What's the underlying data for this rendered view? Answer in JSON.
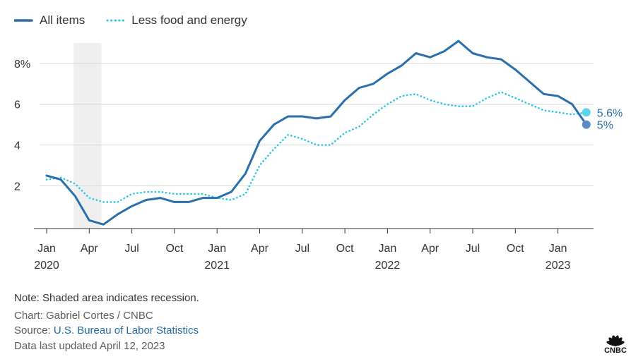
{
  "chart_data": {
    "type": "line",
    "x_unit": "month",
    "x_start": "2020-01",
    "series": [
      {
        "name": "All items",
        "color": "#2a6fad",
        "style": "solid",
        "values": [
          2.5,
          2.3,
          1.5,
          0.3,
          0.1,
          0.6,
          1.0,
          1.3,
          1.4,
          1.2,
          1.2,
          1.4,
          1.4,
          1.7,
          2.6,
          4.2,
          5.0,
          5.4,
          5.4,
          5.3,
          5.4,
          6.2,
          6.8,
          7.0,
          7.5,
          7.9,
          8.5,
          8.3,
          8.6,
          9.1,
          8.5,
          8.3,
          8.2,
          7.7,
          7.1,
          6.5,
          6.4,
          6.0,
          5.0
        ],
        "end_label": "5%"
      },
      {
        "name": "Less food and energy",
        "color": "#22c7e3",
        "style": "dotted",
        "values": [
          2.3,
          2.4,
          2.1,
          1.4,
          1.2,
          1.2,
          1.6,
          1.7,
          1.7,
          1.6,
          1.6,
          1.6,
          1.4,
          1.3,
          1.6,
          3.0,
          3.8,
          4.5,
          4.3,
          4.0,
          4.0,
          4.6,
          4.9,
          5.5,
          6.0,
          6.4,
          6.5,
          6.2,
          6.0,
          5.9,
          5.9,
          6.3,
          6.6,
          6.3,
          6.0,
          5.7,
          5.6,
          5.5,
          5.6
        ],
        "end_label": "5.6%"
      }
    ],
    "y_ticks": [
      "2",
      "4",
      "6",
      "8%"
    ],
    "y_tick_values": [
      2,
      4,
      6,
      8
    ],
    "ylim": [
      -0.1,
      9.0
    ],
    "x_ticks": [
      {
        "month": 0,
        "label": "Jan",
        "year": "2020"
      },
      {
        "month": 3,
        "label": "Apr",
        "year": ""
      },
      {
        "month": 6,
        "label": "Jul",
        "year": ""
      },
      {
        "month": 9,
        "label": "Oct",
        "year": ""
      },
      {
        "month": 12,
        "label": "Jan",
        "year": "2021"
      },
      {
        "month": 15,
        "label": "Apr",
        "year": ""
      },
      {
        "month": 18,
        "label": "Jul",
        "year": ""
      },
      {
        "month": 21,
        "label": "Oct",
        "year": ""
      },
      {
        "month": 24,
        "label": "Jan",
        "year": "2022"
      },
      {
        "month": 27,
        "label": "Apr",
        "year": ""
      },
      {
        "month": 30,
        "label": "Jul",
        "year": ""
      },
      {
        "month": 33,
        "label": "Oct",
        "year": ""
      },
      {
        "month": 36,
        "label": "Jan",
        "year": "2023"
      }
    ],
    "recession": {
      "from": 2,
      "to": 4
    },
    "grid": true,
    "legend_position": "top-left"
  },
  "footer": {
    "note": "Note: Shaded area indicates recession.",
    "credit": "Chart: Gabriel Cortes / CNBC",
    "source_prefix": "Source: ",
    "source_link": "U.S. Bureau of Labor Statistics",
    "updated": "Data last updated April 12, 2023"
  },
  "logo": {
    "text": "CNBC",
    "icon": "peacock-icon"
  }
}
